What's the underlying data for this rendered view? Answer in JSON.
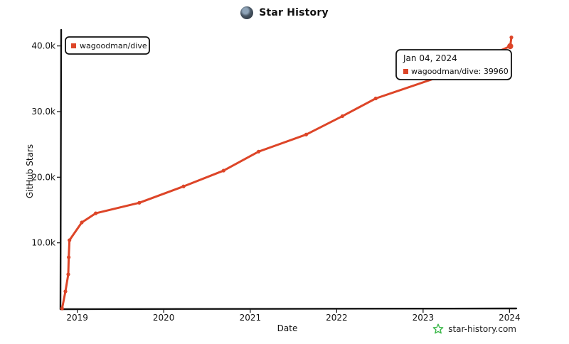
{
  "chart_data": {
    "type": "line",
    "title": "Star History",
    "xlabel": "Date",
    "ylabel": "GitHub Stars",
    "x_ticks": [
      "2019",
      "2020",
      "2021",
      "2022",
      "2023",
      "2024"
    ],
    "y_ticks": [
      "10.0k",
      "20.0k",
      "30.0k",
      "40.0k"
    ],
    "ylim": [
      0,
      41800
    ],
    "xlim": [
      "2018-10-25",
      "2024-01-18"
    ],
    "legend": {
      "position": "top-left",
      "entries": [
        "wagoodman/dive"
      ]
    },
    "grid": false,
    "series": [
      {
        "name": "wagoodman/dive",
        "color": "#dd4528",
        "points": [
          {
            "date": "2018-10-29",
            "stars": 0
          },
          {
            "date": "2018-11-12",
            "stars": 2600
          },
          {
            "date": "2018-11-24",
            "stars": 5200
          },
          {
            "date": "2018-11-26",
            "stars": 7800
          },
          {
            "date": "2018-11-29",
            "stars": 10400
          },
          {
            "date": "2019-01-20",
            "stars": 13100
          },
          {
            "date": "2019-03-20",
            "stars": 14500
          },
          {
            "date": "2019-09-20",
            "stars": 16100
          },
          {
            "date": "2020-03-25",
            "stars": 18600
          },
          {
            "date": "2020-09-10",
            "stars": 21000
          },
          {
            "date": "2021-02-05",
            "stars": 23900
          },
          {
            "date": "2021-08-25",
            "stars": 26500
          },
          {
            "date": "2022-01-25",
            "stars": 29300
          },
          {
            "date": "2022-06-15",
            "stars": 32000
          },
          {
            "date": "2023-04-05",
            "stars": 35600
          },
          {
            "date": "2024-01-04",
            "stars": 39960
          },
          {
            "date": "2024-01-09",
            "stars": 41300
          }
        ]
      }
    ],
    "tooltip": {
      "date": "Jan 04, 2024",
      "series": "wagoodman/dive",
      "value": "39960"
    }
  },
  "watermark": {
    "text": "star-history.com",
    "icon": "star-outline-icon"
  },
  "logo": {
    "icon": "repo-avatar-icon"
  }
}
